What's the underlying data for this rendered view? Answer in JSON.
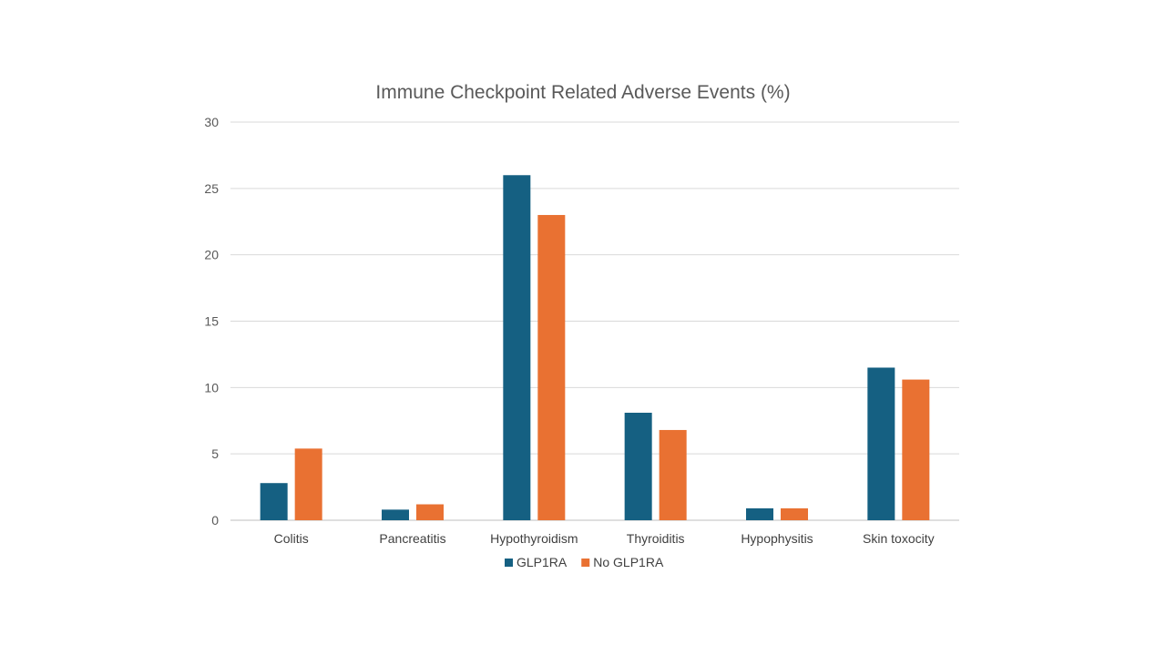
{
  "chart_data": {
    "type": "bar",
    "title": "Immune Checkpoint Related Adverse Events (%)",
    "xlabel": "",
    "ylabel": "",
    "ylim": [
      0,
      30
    ],
    "yticks": [
      0,
      5,
      10,
      15,
      20,
      25,
      30
    ],
    "grid": true,
    "legend_position": "bottom",
    "categories": [
      "Colitis",
      "Pancreatitis",
      "Hypothyroidism",
      "Thyroiditis",
      "Hypophysitis",
      "Skin toxocity"
    ],
    "series": [
      {
        "name": "GLP1RA",
        "color": "#156082",
        "values": [
          2.8,
          0.8,
          26.0,
          8.1,
          0.9,
          11.5
        ]
      },
      {
        "name": "No GLP1RA",
        "color": "#E97132",
        "values": [
          5.4,
          1.2,
          23.0,
          6.8,
          0.9,
          10.6
        ]
      }
    ]
  }
}
